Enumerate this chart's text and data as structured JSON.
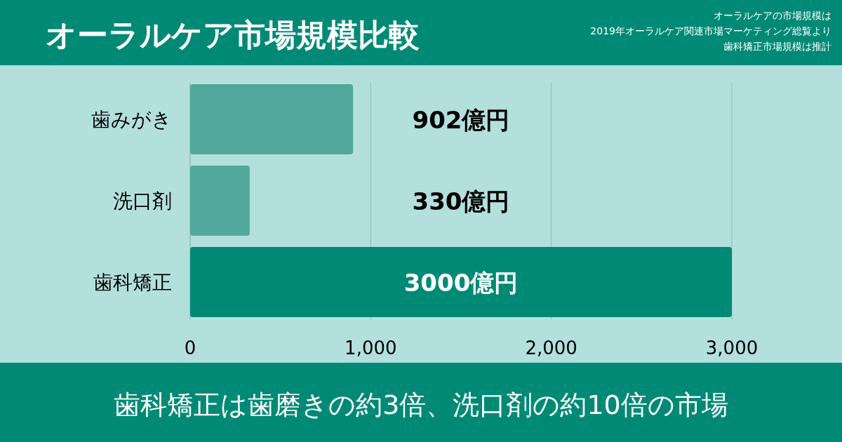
{
  "chart_data": {
    "type": "bar",
    "orientation": "horizontal",
    "title": "オーラルケア市場規模比較",
    "annotations": [
      "オーラルケアの市場規模は",
      "2019年オーラルケア関連市場マーケティング総覧より",
      "歯科矯正市場規模は推計",
      "歯科矯正は歯磨きの約3倍、洗口剤の約10倍の市場"
    ],
    "categories": [
      "歯みがき",
      "洗口剤",
      "歯科矯正"
    ],
    "values": [
      902,
      330,
      3000
    ],
    "colors": [
      "#52a89b",
      "#52a89b",
      "#008a76"
    ],
    "value_labels": [
      "902億円",
      "330億円",
      "3000億円"
    ],
    "xlim": [
      0,
      3000
    ],
    "xticks": [
      0,
      {
        "value": 1000,
        "label": "1,000"
      },
      {
        "value": 2000,
        "label": "2,000"
      },
      {
        "value": 3000,
        "label": "3,000"
      }
    ],
    "grid": "x"
  }
}
